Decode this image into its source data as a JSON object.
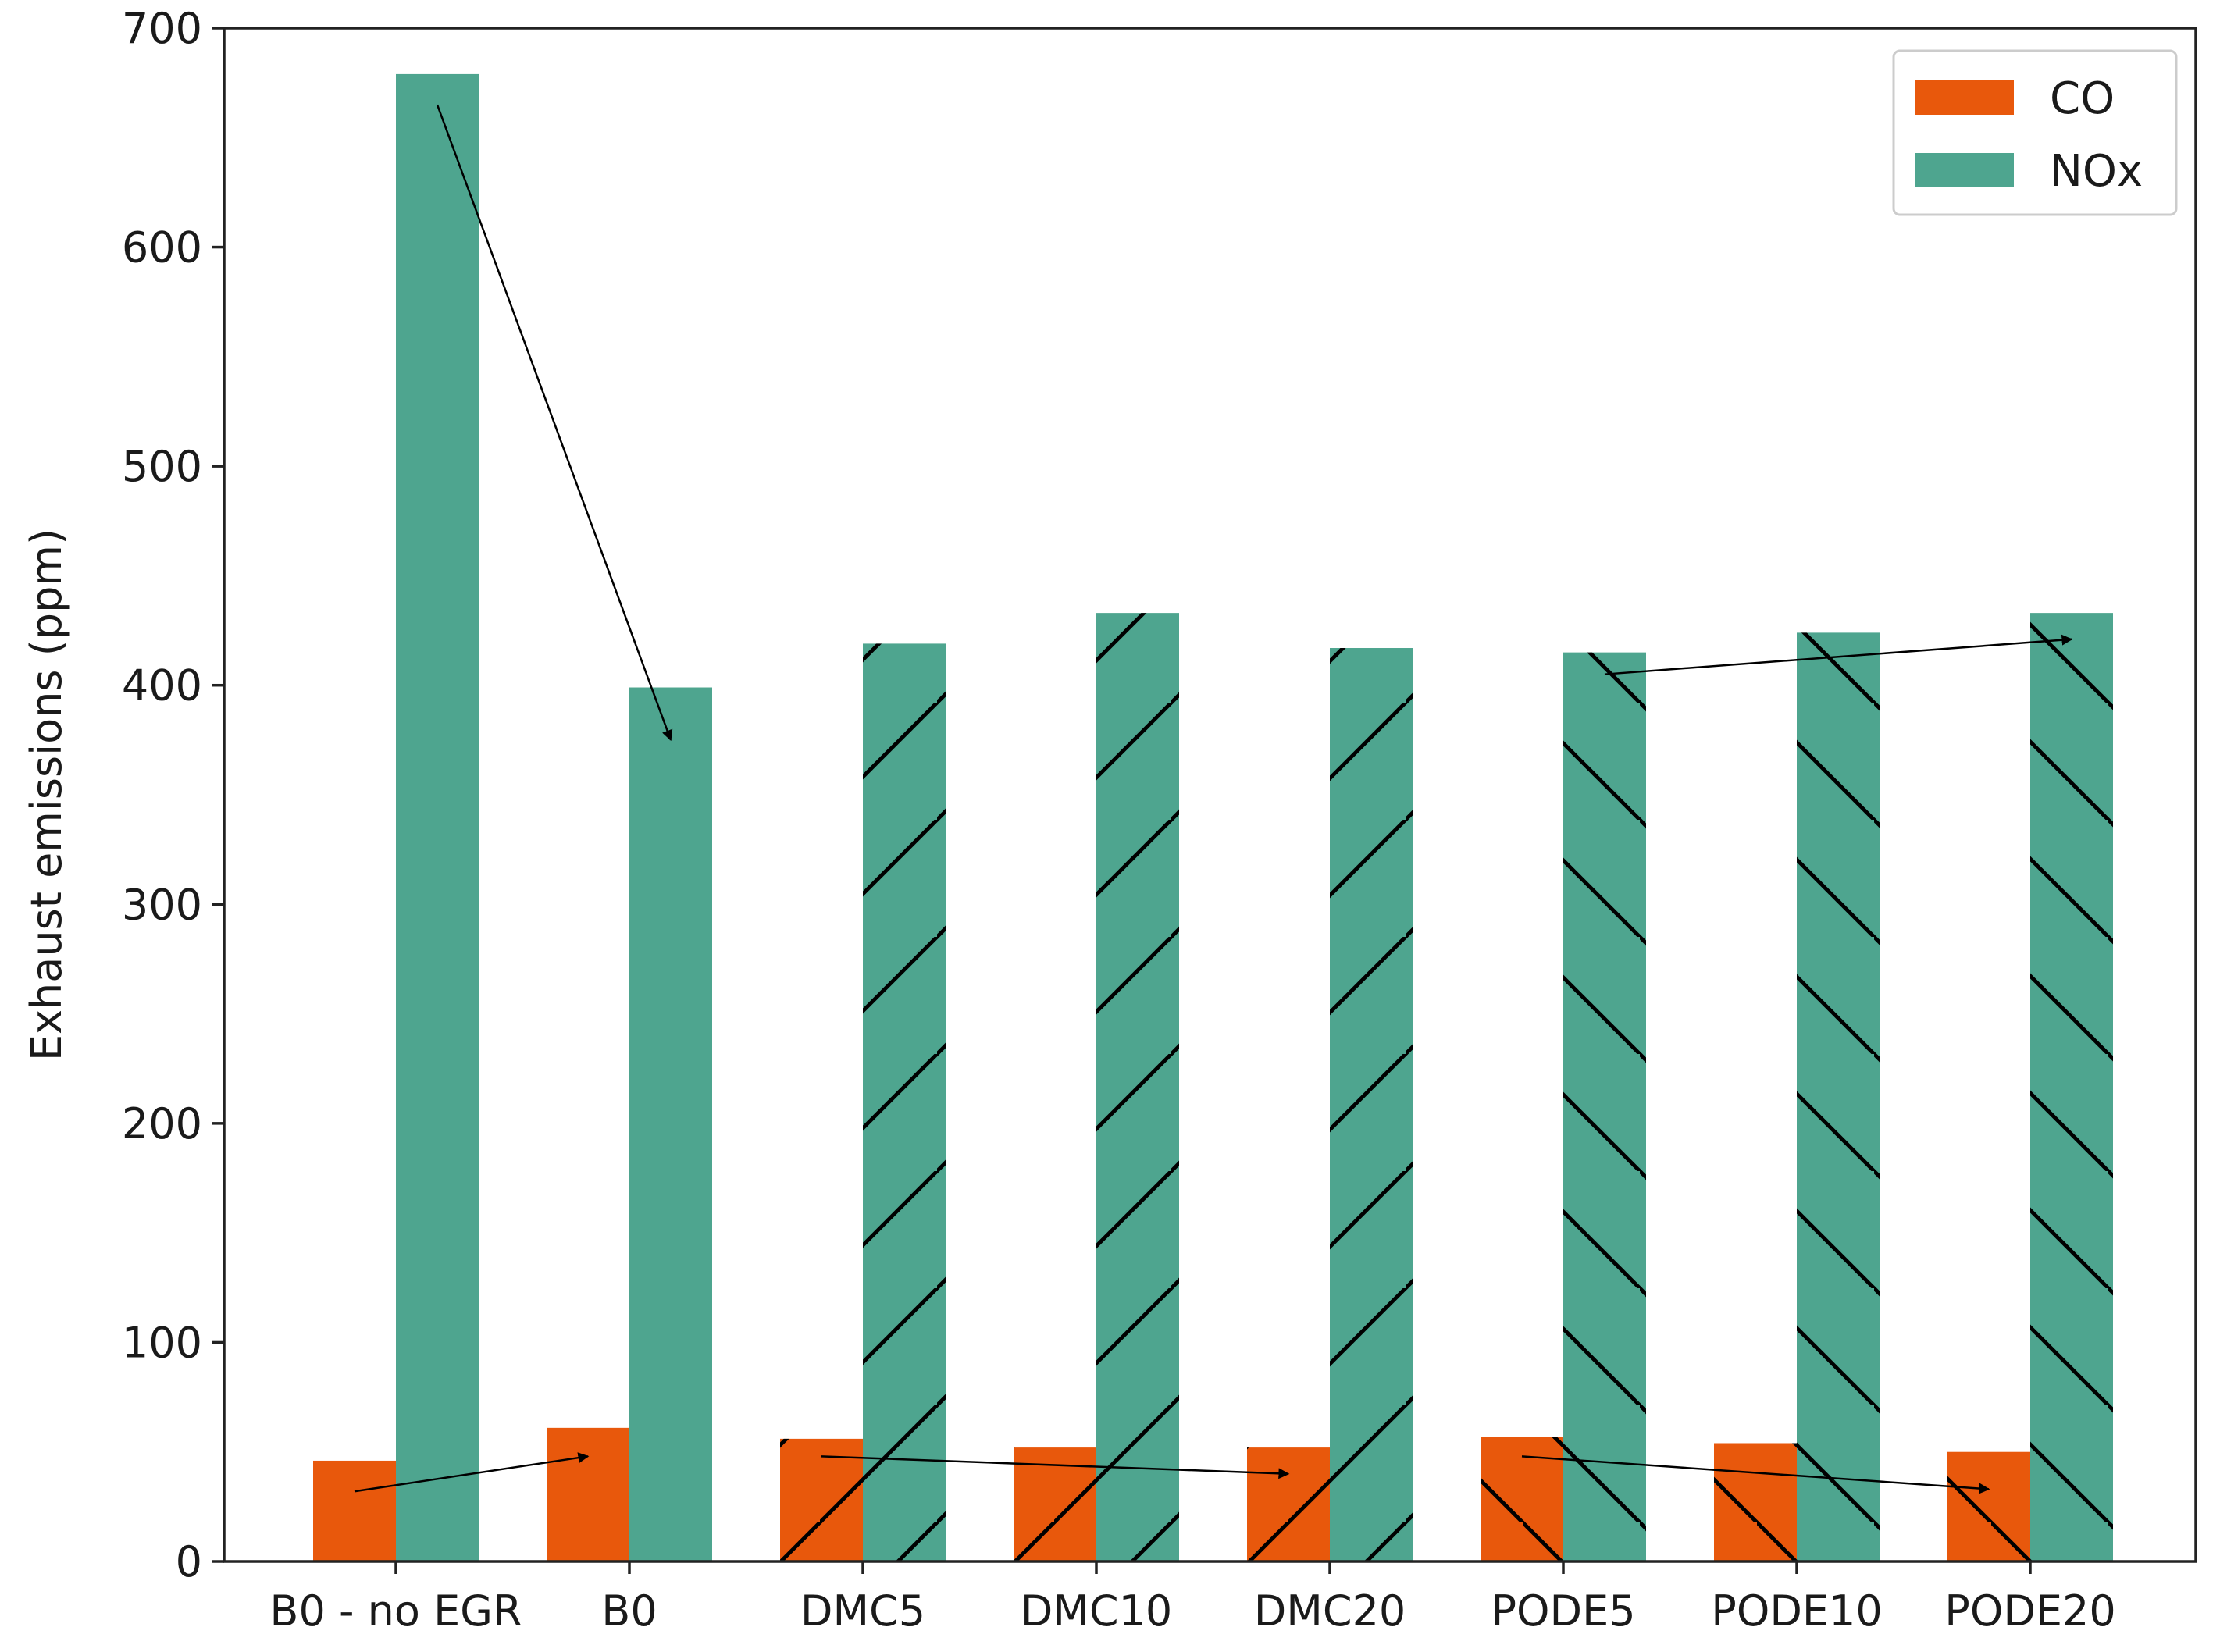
{
  "chart_data": {
    "type": "bar",
    "title": "",
    "xlabel": "",
    "ylabel": "Exhaust emissions (ppm)",
    "ylim": [
      0,
      700
    ],
    "yticks": [
      0,
      100,
      200,
      300,
      400,
      500,
      600,
      700
    ],
    "grid": false,
    "legend_position": "top-right",
    "categories": [
      "B0 - no EGR",
      "B0",
      "DMC5",
      "DMC10",
      "DMC20",
      "PODE5",
      "PODE10",
      "PODE20"
    ],
    "hatch": [
      "none",
      "none",
      "forward",
      "forward",
      "forward",
      "backward",
      "backward",
      "backward"
    ],
    "series": [
      {
        "name": "CO",
        "color": "#e8580c",
        "values": [
          46,
          61,
          56,
          52,
          52,
          57,
          54,
          50
        ]
      },
      {
        "name": "NOx",
        "color": "#4ea58f",
        "values": [
          679,
          399,
          419,
          433,
          417,
          415,
          424,
          433
        ]
      }
    ],
    "annotations": [
      {
        "type": "arrow",
        "from": {
          "category": "B0 - no EGR",
          "series": "NOx",
          "y": 665
        },
        "to": {
          "category": "B0",
          "series": "NOx",
          "y": 375
        }
      },
      {
        "type": "arrow",
        "from": {
          "category": "B0 - no EGR",
          "series": "CO",
          "y": 32
        },
        "to": {
          "category": "B0",
          "series": "CO",
          "y": 48
        }
      },
      {
        "type": "arrow",
        "from": {
          "category": "DMC5",
          "series": "CO",
          "y": 48
        },
        "to": {
          "category": "DMC20",
          "series": "CO",
          "y": 40
        }
      },
      {
        "type": "arrow",
        "from": {
          "category": "PODE5",
          "series": "CO",
          "y": 48
        },
        "to": {
          "category": "PODE20",
          "series": "CO",
          "y": 33
        }
      },
      {
        "type": "arrow",
        "from": {
          "category": "PODE5",
          "series": "NOx",
          "y": 405
        },
        "to": {
          "category": "PODE20",
          "series": "NOx",
          "y": 421
        }
      }
    ]
  }
}
